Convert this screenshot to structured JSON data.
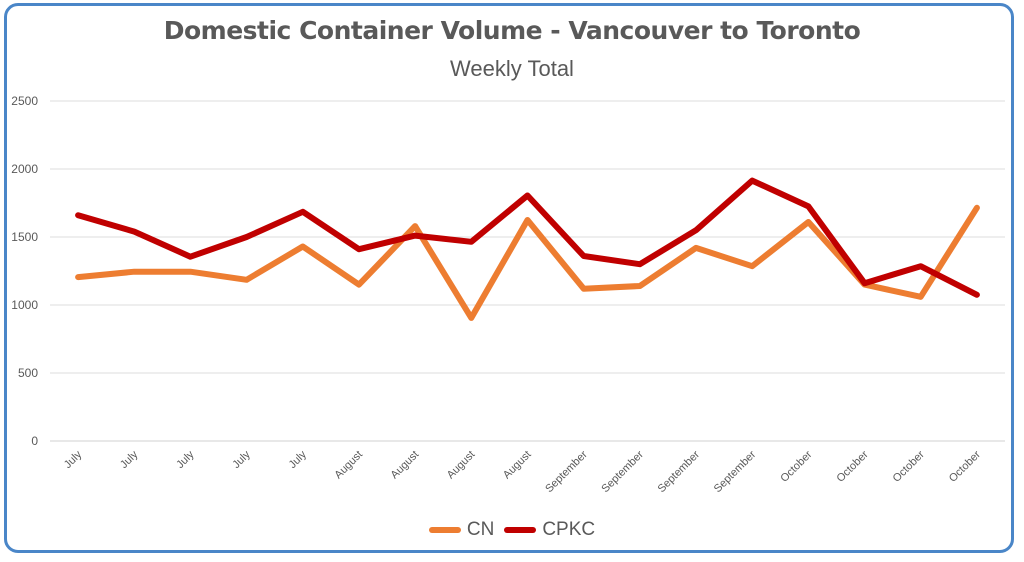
{
  "chart_data": {
    "type": "line",
    "title": "Domestic Container Volume - Vancouver to Toronto",
    "subtitle": "Weekly Total",
    "categories": [
      "July",
      "July",
      "July",
      "July",
      "July",
      "August",
      "August",
      "August",
      "August",
      "September",
      "September",
      "September",
      "September",
      "October",
      "October",
      "October",
      "October"
    ],
    "ylim": [
      0,
      2500
    ],
    "yticks": [
      0,
      500,
      1000,
      1500,
      2000,
      2500
    ],
    "grid": true,
    "legend_position": "bottom",
    "series": [
      {
        "name": "CN",
        "color": "#ed7d31",
        "values": [
          1205,
          1245,
          1245,
          1185,
          1430,
          1150,
          1580,
          905,
          1625,
          1120,
          1140,
          1420,
          1285,
          1610,
          1150,
          1060,
          1715
        ]
      },
      {
        "name": "CPKC",
        "color": "#c00000",
        "values": [
          1660,
          1540,
          1355,
          1500,
          1685,
          1410,
          1510,
          1465,
          1805,
          1360,
          1300,
          1550,
          1915,
          1725,
          1160,
          1285,
          1075
        ]
      }
    ]
  }
}
